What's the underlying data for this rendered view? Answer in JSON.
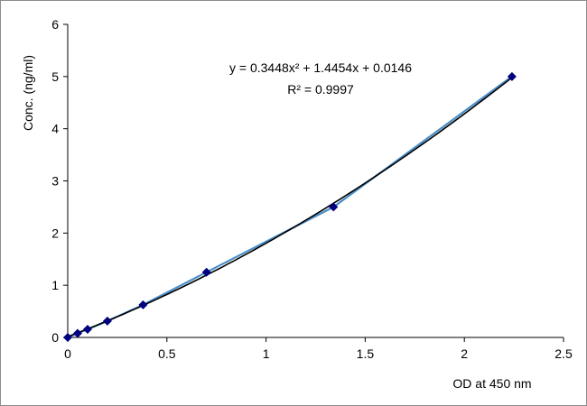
{
  "chart_data": {
    "type": "scatter",
    "xlabel": "OD at 450 nm",
    "ylabel": "Conc. (ng/ml)",
    "xlim": [
      0,
      2.5
    ],
    "ylim": [
      0,
      6
    ],
    "x_ticks": [
      "0",
      "0.5",
      "1",
      "1.5",
      "2",
      "2.5"
    ],
    "y_ticks": [
      "0",
      "1",
      "2",
      "3",
      "4",
      "5",
      "6"
    ],
    "grid": false,
    "series": [
      {
        "points": [
          {
            "x": 0.0,
            "y": 0.0
          },
          {
            "x": 0.05,
            "y": 0.078
          },
          {
            "x": 0.1,
            "y": 0.156
          },
          {
            "x": 0.2,
            "y": 0.3125
          },
          {
            "x": 0.38,
            "y": 0.625
          },
          {
            "x": 0.7,
            "y": 1.25
          },
          {
            "x": 1.34,
            "y": 2.5
          },
          {
            "x": 2.24,
            "y": 5.0
          }
        ],
        "color": "#000080",
        "line_color": "#4a8ec8"
      }
    ],
    "trendline": {
      "type": "polynomial",
      "coefficients": [
        0.3448,
        1.4454,
        0.0146
      ],
      "color": "#000000",
      "equation_label": "y = 0.3448x² + 1.4454x + 0.0146",
      "r2_label": "R² = 0.9997"
    }
  }
}
